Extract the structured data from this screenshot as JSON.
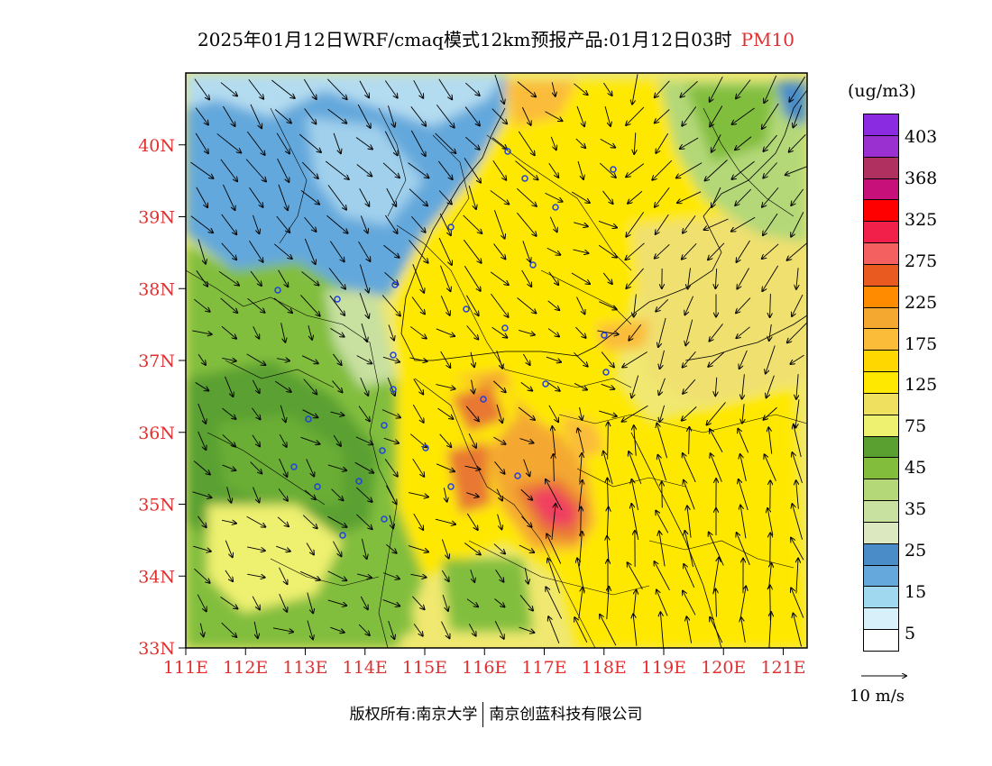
{
  "title": {
    "main": "2025年01月12日WRF/cmaq模式12km预报产品:01月12日03时",
    "pollutant": "PM10"
  },
  "map": {
    "lon_range": [
      111,
      121.4
    ],
    "lat_range": [
      33,
      41
    ],
    "lat_labels": [
      "40N",
      "39N",
      "38N",
      "37N",
      "36N",
      "35N",
      "34N",
      "33N"
    ],
    "lon_labels": [
      "111E",
      "112E",
      "113E",
      "114E",
      "115E",
      "116E",
      "117E",
      "118E",
      "119E",
      "120E",
      "121E"
    ],
    "label_color": "#e03030"
  },
  "legend": {
    "unit": "(ug/m3)",
    "colors": [
      "#8a2be2",
      "#9b30d0",
      "#b03060",
      "#c8107a",
      "#ff0000",
      "#f0204a",
      "#f46060",
      "#e85a20",
      "#ff8c00",
      "#f4a830",
      "#fbbc3a",
      "#ffd700",
      "#ffe800",
      "#f0e060",
      "#eef070",
      "#5aa030",
      "#82be3c",
      "#b4d878",
      "#c8e0a0",
      "#dce8c0",
      "#4a8cc8",
      "#64a8dc",
      "#a0d8f0",
      "#d8f0fa",
      "#ffffff"
    ],
    "labels": [
      "403",
      "368",
      "325",
      "275",
      "225",
      "175",
      "125",
      "75",
      "45",
      "35",
      "25",
      "15",
      "5"
    ]
  },
  "wind_reference": "10 m/s",
  "footer": {
    "left": "版权所有:南京大学",
    "right": "南京创蓝科技有限公司"
  },
  "colors": {
    "low_blue": "#64a8dc",
    "light_blue": "#b4dcf0",
    "green": "#82be3c",
    "light_green": "#c8e0a0",
    "yellow": "#ffe800",
    "pale_yellow": "#f0e870",
    "orange": "#f4a830",
    "dark_orange": "#e87830",
    "red": "#f02050",
    "city_marker": "#2040e0"
  }
}
